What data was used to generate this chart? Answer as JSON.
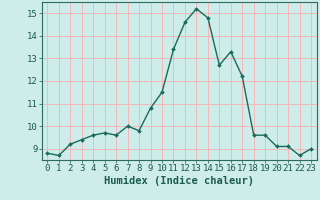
{
  "x": [
    0,
    1,
    2,
    3,
    4,
    5,
    6,
    7,
    8,
    9,
    10,
    11,
    12,
    13,
    14,
    15,
    16,
    17,
    18,
    19,
    20,
    21,
    22,
    23
  ],
  "y": [
    8.8,
    8.7,
    9.2,
    9.4,
    9.6,
    9.7,
    9.6,
    10.0,
    9.8,
    10.8,
    11.5,
    13.4,
    14.6,
    15.2,
    14.8,
    12.7,
    13.3,
    12.2,
    9.6,
    9.6,
    9.1,
    9.1,
    8.7,
    9.0
  ],
  "line_color": "#1a6b5a",
  "marker": "D",
  "marker_size": 2.0,
  "bg_color": "#ceecea",
  "grid_color": "#f5b8b8",
  "axis_color": "#2d6b5e",
  "xlabel": "Humidex (Indice chaleur)",
  "xlim": [
    -0.5,
    23.5
  ],
  "ylim": [
    8.5,
    15.5
  ],
  "yticks": [
    9,
    10,
    11,
    12,
    13,
    14,
    15
  ],
  "xticks": [
    0,
    1,
    2,
    3,
    4,
    5,
    6,
    7,
    8,
    9,
    10,
    11,
    12,
    13,
    14,
    15,
    16,
    17,
    18,
    19,
    20,
    21,
    22,
    23
  ],
  "xlabel_fontsize": 7.5,
  "tick_fontsize": 6.5,
  "label_color": "#1a5c4e",
  "linewidth": 1.0
}
